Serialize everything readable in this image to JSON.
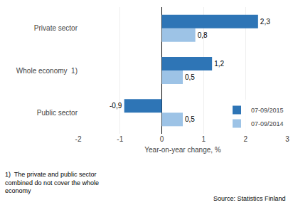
{
  "chart_data": {
    "type": "bar",
    "orientation": "horizontal",
    "categories": [
      "Public sector",
      "Whole economy  1)",
      "Private sector"
    ],
    "series": [
      {
        "name": "07-09/2015",
        "color": "#2E75B6",
        "values": [
          -0.9,
          1.2,
          2.3
        ],
        "value_labels": [
          "-0,9",
          "1,2",
          "2,3"
        ]
      },
      {
        "name": "07-09/2014",
        "color": "#9DC3E6",
        "values": [
          0.5,
          0.5,
          0.8
        ],
        "value_labels": [
          "0,5",
          "0,5",
          "0,8"
        ]
      }
    ],
    "xlabel": "Year-on-year change, %",
    "xlim": [
      -2,
      3
    ],
    "xticks": [
      -2,
      -1,
      0,
      1,
      2,
      3
    ],
    "grid": true,
    "legend": "lower right",
    "data_labels": true,
    "annotations": [
      "1)  The private and public sector\ncombined do not cover the whole\neconomy",
      "Source: Statistics Finland"
    ]
  }
}
